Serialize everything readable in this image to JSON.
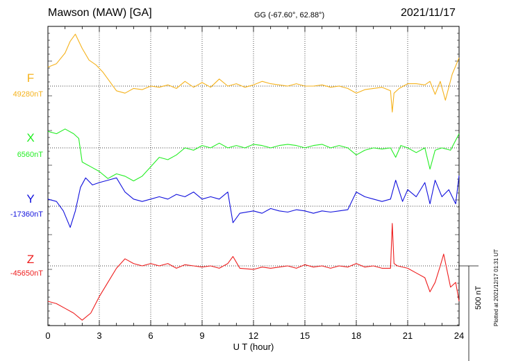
{
  "header": {
    "station": "Mawson (MAW)  [GA]",
    "coords": "GG (-67.60°,  62.88°)",
    "date": "2021/11/17",
    "plotted": "Plotted at 2021/12/17 01:31  UT"
  },
  "scale_label": "500 nT",
  "chart_data": {
    "type": "line",
    "xlabel": "U T (hour)",
    "xlim": [
      0,
      24
    ],
    "xticks": [
      0,
      3,
      6,
      9,
      12,
      15,
      18,
      21,
      24
    ],
    "scale_nT": 500,
    "grid": true,
    "series": [
      {
        "name": "F",
        "baseline_label": "49280nT",
        "baseline_nT": 49280,
        "color": "#f5b21c",
        "x": [
          0,
          0.5,
          1,
          1.3,
          1.6,
          2,
          2.4,
          2.8,
          3.2,
          3.6,
          4,
          4.5,
          5,
          5.5,
          6,
          6.5,
          7,
          7.5,
          8,
          8.5,
          9,
          9.5,
          10,
          10.5,
          11,
          11.5,
          12,
          12.5,
          13,
          13.5,
          14,
          14.5,
          15,
          15.5,
          16,
          16.5,
          17,
          17.5,
          18,
          18.5,
          19,
          19.5,
          20,
          20.1,
          20.2,
          20.5,
          21,
          21.5,
          22,
          22.3,
          22.6,
          22.9,
          23.2,
          23.6,
          24
        ],
        "y": [
          49360,
          49375,
          49420,
          49470,
          49500,
          49440,
          49390,
          49370,
          49340,
          49300,
          49260,
          49250,
          49270,
          49265,
          49280,
          49275,
          49285,
          49270,
          49300,
          49275,
          49295,
          49275,
          49310,
          49280,
          49290,
          49275,
          49285,
          49300,
          49290,
          49285,
          49280,
          49290,
          49280,
          49280,
          49285,
          49275,
          49280,
          49270,
          49250,
          49265,
          49270,
          49275,
          49260,
          49170,
          49250,
          49270,
          49290,
          49290,
          49285,
          49300,
          49245,
          49300,
          49220,
          49330,
          49400
        ]
      },
      {
        "name": "X",
        "baseline_label": "6560nT",
        "baseline_nT": 6560,
        "color": "#22ee22",
        "x": [
          0,
          0.5,
          1,
          1.5,
          1.8,
          2,
          2.5,
          3,
          3.5,
          4,
          4.5,
          5,
          5.5,
          6,
          6.5,
          7,
          7.5,
          8,
          8.5,
          9,
          9.5,
          10,
          10.5,
          11,
          11.5,
          12,
          12.5,
          13,
          13.5,
          14,
          14.5,
          15,
          15.5,
          16,
          16.5,
          17,
          17.5,
          18,
          18.5,
          19,
          19.5,
          20,
          20.3,
          20.6,
          21,
          21.5,
          22,
          22.3,
          22.6,
          23,
          23.5,
          24
        ],
        "y": [
          6630,
          6620,
          6640,
          6620,
          6600,
          6500,
          6480,
          6460,
          6430,
          6450,
          6440,
          6420,
          6440,
          6480,
          6520,
          6510,
          6530,
          6560,
          6550,
          6570,
          6560,
          6580,
          6560,
          6570,
          6560,
          6575,
          6570,
          6560,
          6570,
          6575,
          6570,
          6560,
          6570,
          6575,
          6560,
          6570,
          6560,
          6530,
          6550,
          6560,
          6555,
          6560,
          6520,
          6570,
          6560,
          6540,
          6560,
          6470,
          6550,
          6560,
          6550,
          6620
        ]
      },
      {
        "name": "Y",
        "baseline_label": "-17360nT",
        "baseline_nT": -17360,
        "color": "#1010dd",
        "x": [
          0,
          0.5,
          0.9,
          1.3,
          1.6,
          1.9,
          2.2,
          2.6,
          3,
          3.5,
          4,
          4.5,
          5,
          5.5,
          6,
          6.5,
          7,
          7.5,
          8,
          8.5,
          9,
          9.5,
          10,
          10.5,
          10.8,
          11.2,
          12,
          12.5,
          13,
          13.5,
          14,
          14.5,
          15,
          15.5,
          16,
          16.5,
          17,
          17.5,
          18,
          18.5,
          19,
          19.5,
          20,
          20.3,
          20.7,
          21,
          21.5,
          22,
          22.3,
          22.6,
          23,
          23.4,
          23.8,
          24
        ],
        "y": [
          -17330,
          -17340,
          -17380,
          -17450,
          -17380,
          -17280,
          -17240,
          -17270,
          -17260,
          -17250,
          -17240,
          -17300,
          -17330,
          -17340,
          -17330,
          -17320,
          -17330,
          -17310,
          -17320,
          -17300,
          -17330,
          -17320,
          -17330,
          -17300,
          -17430,
          -17390,
          -17380,
          -17390,
          -17370,
          -17380,
          -17385,
          -17375,
          -17380,
          -17390,
          -17380,
          -17385,
          -17380,
          -17375,
          -17300,
          -17320,
          -17330,
          -17340,
          -17330,
          -17250,
          -17340,
          -17290,
          -17320,
          -17260,
          -17350,
          -17250,
          -17320,
          -17290,
          -17350,
          -17230
        ]
      },
      {
        "name": "Z",
        "baseline_label": "-45650nT",
        "baseline_nT": -45650,
        "color": "#ee1c1c",
        "x": [
          0,
          0.5,
          1,
          1.5,
          2,
          2.5,
          3,
          3.5,
          4,
          4.5,
          5,
          5.5,
          6,
          6.5,
          7,
          7.5,
          8,
          8.5,
          9,
          9.5,
          10,
          10.5,
          10.8,
          11.2,
          12,
          12.5,
          13,
          13.5,
          14,
          14.5,
          15,
          15.5,
          16,
          16.5,
          17,
          17.5,
          18,
          18.5,
          19,
          19.5,
          20,
          20.1,
          20.2,
          20.4,
          21,
          21.5,
          22,
          22.3,
          22.6,
          22.9,
          23.1,
          23.5,
          23.8,
          24
        ],
        "y": [
          -45800,
          -45810,
          -45830,
          -45850,
          -45880,
          -45850,
          -45780,
          -45720,
          -45660,
          -45620,
          -45640,
          -45650,
          -45640,
          -45650,
          -45640,
          -45660,
          -45645,
          -45650,
          -45655,
          -45650,
          -45660,
          -45640,
          -45610,
          -45660,
          -45665,
          -45655,
          -45660,
          -45655,
          -45650,
          -45660,
          -45645,
          -45655,
          -45650,
          -45660,
          -45650,
          -45655,
          -45640,
          -45655,
          -45650,
          -45660,
          -45660,
          -45470,
          -45640,
          -45650,
          -45660,
          -45680,
          -45700,
          -45760,
          -45720,
          -45650,
          -45600,
          -45740,
          -45720,
          -45800
        ]
      }
    ]
  }
}
